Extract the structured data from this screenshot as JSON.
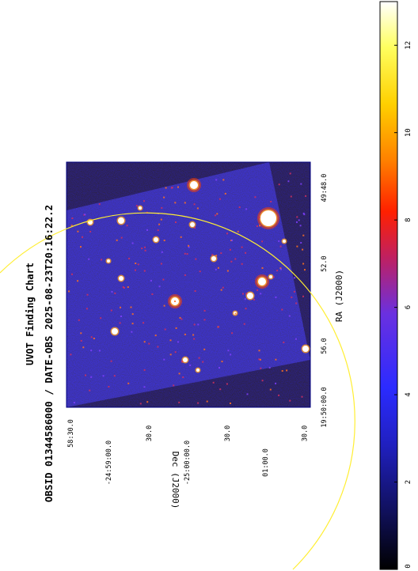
{
  "chart": {
    "title": "UVOT Finding Chart",
    "subtitle": "OBSID 01344586000 / DATE-OBS 2025-08-23T20:16:22.2",
    "xlabel": "RA (J2000)",
    "ylabel": "Dec (J2000)"
  },
  "ra_ticks": [
    {
      "label": "19:50:00.0",
      "pos": 0.0
    },
    {
      "label": "56.0",
      "pos": 0.25
    },
    {
      "label": "52.0",
      "pos": 0.585
    },
    {
      "label": "49:48.0",
      "pos": 0.895
    }
  ],
  "dec_ticks": [
    {
      "label": "58:30.0",
      "pos": 0.0
    },
    {
      "label": "-24:59:00.0",
      "pos": 0.16
    },
    {
      "label": "30.0",
      "pos": 0.33
    },
    {
      "label": "-25:00:00.0",
      "pos": 0.49
    },
    {
      "label": "30.0",
      "pos": 0.66
    },
    {
      "label": "01:00.0",
      "pos": 0.82
    },
    {
      "label": "30.0",
      "pos": 0.985
    }
  ],
  "colorbar": {
    "min": 0,
    "max": 13,
    "ticks": [
      0,
      2,
      4,
      6,
      8,
      10,
      12
    ],
    "colormap": [
      "#000000",
      "#1a1a8c",
      "#2b2bff",
      "#7a30d0",
      "#d02040",
      "#ff4000",
      "#ff9000",
      "#ffe000",
      "#ffff80",
      "#ffffff"
    ]
  },
  "colors": {
    "background": "#ffffff",
    "frame": "#000080",
    "circle": "#ffee33",
    "image_base": "#2a2aa8"
  }
}
